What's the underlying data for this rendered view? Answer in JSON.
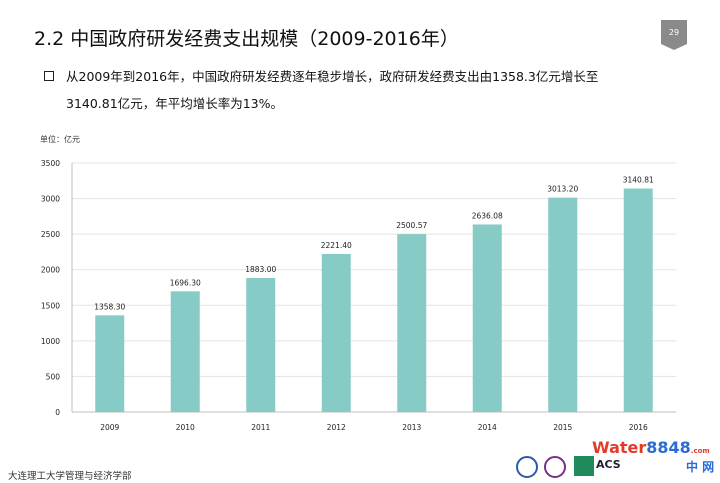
{
  "header": {
    "title": "2.2  中国政府研发经费支出规模（2009-2016年）",
    "page_number": "29"
  },
  "summary": {
    "line1": "从2009年到2016年，中国政府研发经费逐年稳步增长，政府研发经费支出由1358.3亿元增长至",
    "line2": "3140.81亿元，年平均增长率为13%。"
  },
  "chart_data": {
    "type": "bar",
    "unit_label": "单位：亿元",
    "categories": [
      "2009",
      "2010",
      "2011",
      "2012",
      "2013",
      "2014",
      "2015",
      "2016"
    ],
    "values": [
      1358.3,
      1696.3,
      1883.0,
      2221.4,
      2500.57,
      2636.08,
      3013.2,
      3140.81
    ],
    "data_labels": [
      "1358.30",
      "1696.30",
      "1883.00",
      "2221.40",
      "2500.57",
      "2636.08",
      "3013.20",
      "3140.81"
    ],
    "y_ticks": [
      "0",
      "500",
      "1000",
      "1500",
      "2000",
      "2500",
      "3000",
      "3500"
    ],
    "ylim": [
      0,
      3500
    ],
    "grid": true,
    "bar_color": "#86cbc5",
    "title": "",
    "xlabel": "",
    "ylabel": ""
  },
  "footer": {
    "institution": "大连理工大学管理与经济学部"
  },
  "watermark": {
    "brand_a": "Water",
    "brand_b": "8848",
    "brand_c": ".com",
    "acs": "ACS",
    "cn_net": "中 网"
  },
  "colors": {
    "grid": "#e3e3e3",
    "axis": "#bfbfbf",
    "text": "#222222"
  }
}
